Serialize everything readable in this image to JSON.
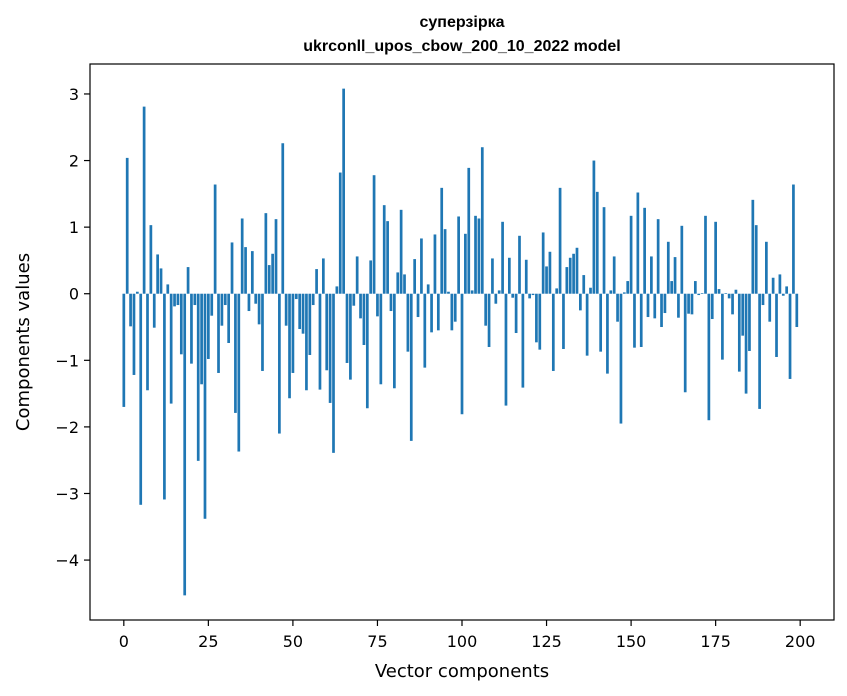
{
  "chart_data": {
    "type": "bar",
    "title": "суперзірка",
    "subtitle": "ukrconll_upos_cbow_200_10_2022 model",
    "xlabel": "Vector components",
    "ylabel": "Components values",
    "xlim": [
      -10,
      210
    ],
    "ylim": [
      -4.9,
      3.45
    ],
    "xticks": [
      0,
      25,
      50,
      75,
      100,
      125,
      150,
      175,
      200
    ],
    "yticks": [
      -4,
      -3,
      -2,
      -1,
      0,
      1,
      2,
      3
    ],
    "bar_color": "#1f77b4",
    "grid": false,
    "values": [
      -1.7,
      2.04,
      -0.49,
      -1.22,
      0.03,
      -3.17,
      2.81,
      -1.45,
      1.03,
      -0.51,
      0.59,
      0.38,
      -3.09,
      0.14,
      -1.65,
      -0.19,
      -0.17,
      -0.91,
      -4.53,
      0.4,
      -1.05,
      -0.17,
      -2.51,
      -1.36,
      -3.38,
      -0.98,
      -0.33,
      1.64,
      -1.19,
      -0.48,
      -0.17,
      -0.74,
      0.77,
      -1.79,
      -2.37,
      1.13,
      0.7,
      -0.26,
      0.64,
      -0.15,
      -0.46,
      -1.16,
      1.21,
      0.43,
      0.6,
      1.12,
      -2.1,
      2.26,
      -0.48,
      -1.57,
      -1.19,
      -0.08,
      -0.53,
      -0.6,
      -1.45,
      -0.92,
      -0.17,
      0.37,
      -1.44,
      0.53,
      -1.15,
      -1.64,
      -2.39,
      0.11,
      1.82,
      3.08,
      -1.04,
      -1.29,
      -0.18,
      0.56,
      -0.37,
      -0.77,
      -1.72,
      0.5,
      1.78,
      -0.34,
      -1.36,
      1.33,
      1.09,
      -0.26,
      -1.42,
      0.32,
      1.26,
      0.29,
      -0.87,
      -2.21,
      0.52,
      -0.35,
      0.83,
      -1.11,
      0.14,
      -0.58,
      0.89,
      -0.55,
      1.59,
      0.97,
      0.03,
      -0.55,
      -0.42,
      1.16,
      -1.81,
      0.9,
      1.89,
      0.05,
      1.17,
      1.13,
      2.2,
      -0.48,
      -0.8,
      0.53,
      -0.15,
      0.05,
      1.08,
      -1.68,
      0.54,
      -0.06,
      -0.59,
      0.87,
      -1.41,
      0.51,
      -0.07,
      -0.02,
      -0.73,
      -0.84,
      0.92,
      0.41,
      0.63,
      -1.16,
      0.08,
      1.59,
      -0.83,
      0.4,
      0.54,
      0.6,
      0.69,
      -0.25,
      0.28,
      -0.93,
      0.09,
      2.0,
      1.53,
      -0.87,
      1.3,
      -1.2,
      0.05,
      0.56,
      -0.42,
      -1.95,
      0.02,
      0.19,
      1.17,
      -0.81,
      1.52,
      -0.8,
      1.29,
      -0.35,
      0.56,
      -0.37,
      1.12,
      -0.5,
      -0.29,
      0.78,
      0.19,
      0.55,
      -0.36,
      1.02,
      -1.48,
      -0.3,
      -0.31,
      0.19,
      -0.02,
      0.01,
      1.17,
      -1.9,
      -0.38,
      1.08,
      0.07,
      -0.99,
      0.01,
      -0.07,
      -0.31,
      0.06,
      -1.17,
      -0.63,
      -1.5,
      -0.86,
      1.41,
      1.03,
      -1.73,
      -0.17,
      0.78,
      -0.42,
      0.24,
      -0.95,
      0.29,
      -0.03,
      0.11,
      -1.28,
      1.64,
      -0.5
    ]
  }
}
